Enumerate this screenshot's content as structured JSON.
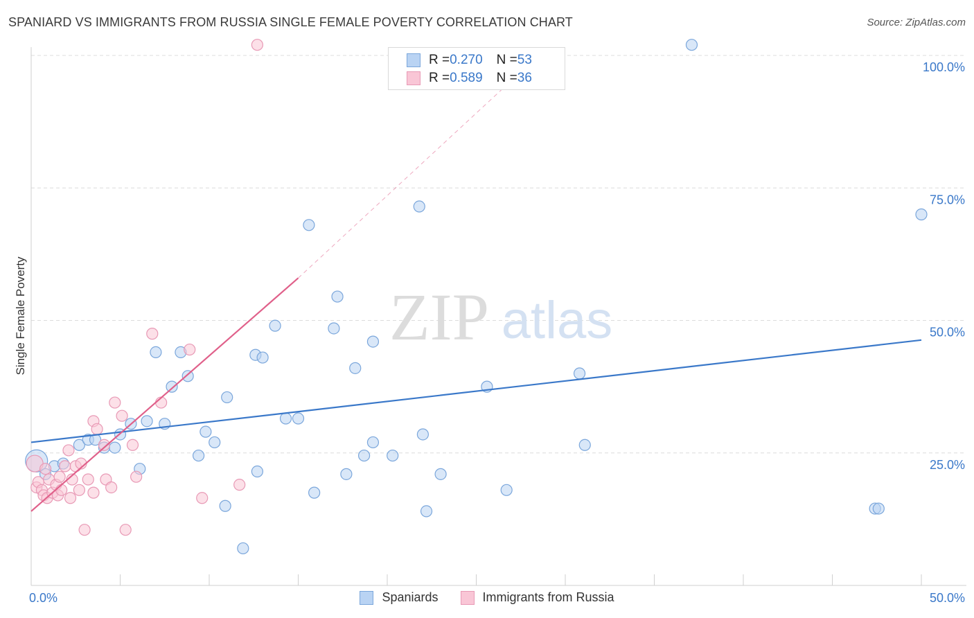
{
  "title": "SPANIARD VS IMMIGRANTS FROM RUSSIA SINGLE FEMALE POVERTY CORRELATION CHART",
  "source": "Source: ZipAtlas.com",
  "watermark": {
    "zip": "ZIP",
    "atlas": "atlas"
  },
  "legend_top": [
    {
      "r_label": "R = ",
      "r_value": "0.270",
      "n_label": "N = ",
      "n_value": "53",
      "fill": "#b9d3f3",
      "stroke": "#7aa6db"
    },
    {
      "r_label": "R = ",
      "r_value": "0.589",
      "n_label": "N = ",
      "n_value": "36",
      "fill": "#f9c6d6",
      "stroke": "#e899b5"
    }
  ],
  "legend_bottom": [
    {
      "label": "Spaniards",
      "fill": "#b9d3f3",
      "stroke": "#7aa6db"
    },
    {
      "label": "Immigrants from Russia",
      "fill": "#f9c6d6",
      "stroke": "#e899b5"
    }
  ],
  "chart_data": {
    "type": "scatter",
    "title": "SPANIARD VS IMMIGRANTS FROM RUSSIA SINGLE FEMALE POVERTY CORRELATION CHART",
    "xlabel": "",
    "ylabel": "Single Female Poverty",
    "xlim": [
      0,
      50
    ],
    "ylim": [
      0,
      102
    ],
    "x_tick_labels": [
      {
        "value": 0,
        "label": "0.0%"
      },
      {
        "value": 50,
        "label": "50.0%"
      }
    ],
    "y_tick_labels": [
      {
        "value": 25,
        "label": "25.0%"
      },
      {
        "value": 50,
        "label": "50.0%"
      },
      {
        "value": 75,
        "label": "75.0%"
      },
      {
        "value": 100,
        "label": "100.0%"
      }
    ],
    "gridlines_y": [
      25,
      50,
      75,
      100
    ],
    "series": [
      {
        "name": "Spaniards",
        "color": "#3a78c9",
        "fill": "#b9d3f3",
        "stroke": "#7aa6db",
        "trend": {
          "x": [
            0,
            50
          ],
          "y": [
            27.0,
            46.3
          ]
        },
        "points": [
          [
            0.3,
            23.5,
            3
          ],
          [
            0.8,
            21.0,
            1
          ],
          [
            1.3,
            22.5,
            1
          ],
          [
            1.8,
            23.0,
            1
          ],
          [
            2.7,
            26.5,
            1
          ],
          [
            3.2,
            27.5,
            1
          ],
          [
            3.6,
            27.5,
            1
          ],
          [
            4.1,
            26.0,
            1
          ],
          [
            4.7,
            26.0,
            1
          ],
          [
            5.0,
            28.5,
            1
          ],
          [
            5.6,
            30.5,
            1
          ],
          [
            6.1,
            22.0,
            1
          ],
          [
            6.5,
            31.0,
            1
          ],
          [
            7.0,
            44.0,
            1
          ],
          [
            7.5,
            30.5,
            1
          ],
          [
            7.9,
            37.5,
            1
          ],
          [
            8.4,
            44.0,
            1
          ],
          [
            8.8,
            39.5,
            1
          ],
          [
            9.4,
            24.5,
            1
          ],
          [
            9.8,
            29.0,
            1
          ],
          [
            10.3,
            27.0,
            1
          ],
          [
            10.9,
            15.0,
            1
          ],
          [
            11.0,
            35.5,
            1
          ],
          [
            11.9,
            7.0,
            1
          ],
          [
            12.6,
            43.5,
            1
          ],
          [
            12.7,
            21.5,
            1
          ],
          [
            13.0,
            43.0,
            1
          ],
          [
            13.7,
            49.0,
            1
          ],
          [
            14.3,
            31.5,
            1
          ],
          [
            15.0,
            31.5,
            1
          ],
          [
            15.6,
            68.0,
            1
          ],
          [
            15.9,
            17.5,
            1
          ],
          [
            17.0,
            48.5,
            1
          ],
          [
            17.2,
            54.5,
            1
          ],
          [
            17.7,
            21.0,
            1
          ],
          [
            18.2,
            41.0,
            1
          ],
          [
            18.7,
            24.5,
            1
          ],
          [
            19.2,
            27.0,
            1
          ],
          [
            19.2,
            46.0,
            1
          ],
          [
            20.3,
            24.5,
            1
          ],
          [
            21.8,
            71.5,
            1
          ],
          [
            22.0,
            28.5,
            1
          ],
          [
            22.2,
            14.0,
            1
          ],
          [
            23.0,
            21.0,
            1
          ],
          [
            25.6,
            37.5,
            1
          ],
          [
            26.7,
            18.0,
            1
          ],
          [
            30.8,
            40.0,
            1
          ],
          [
            31.1,
            26.5,
            1
          ],
          [
            37.1,
            102.0,
            1
          ],
          [
            47.4,
            14.5,
            1
          ],
          [
            47.6,
            14.5,
            1
          ],
          [
            50.0,
            70.0,
            1
          ]
        ]
      },
      {
        "name": "Immigrants from Russia",
        "color": "#e0608a",
        "fill": "#f9c6d6",
        "stroke": "#e899b5",
        "trend": {
          "x": [
            0,
            15
          ],
          "y": [
            14.0,
            58.0
          ],
          "dashed_to": {
            "x": 28.5,
            "y": 100
          }
        },
        "points": [
          [
            0.2,
            23.0,
            2
          ],
          [
            0.3,
            18.5,
            1
          ],
          [
            0.4,
            19.5,
            1
          ],
          [
            0.6,
            18.0,
            1
          ],
          [
            0.7,
            17.0,
            1
          ],
          [
            0.8,
            22.0,
            1
          ],
          [
            0.9,
            16.5,
            1
          ],
          [
            1.0,
            20.0,
            1
          ],
          [
            1.2,
            17.5,
            1
          ],
          [
            1.4,
            19.0,
            1
          ],
          [
            1.5,
            17.0,
            1
          ],
          [
            1.6,
            20.5,
            1
          ],
          [
            1.7,
            18.0,
            1
          ],
          [
            1.9,
            22.5,
            1
          ],
          [
            2.1,
            25.5,
            1
          ],
          [
            2.2,
            16.5,
            1
          ],
          [
            2.3,
            20.0,
            1
          ],
          [
            2.5,
            22.5,
            1
          ],
          [
            2.7,
            18.0,
            1
          ],
          [
            2.8,
            23.0,
            1
          ],
          [
            3.0,
            10.5,
            1
          ],
          [
            3.2,
            20.0,
            1
          ],
          [
            3.5,
            31.0,
            1
          ],
          [
            3.5,
            17.5,
            1
          ],
          [
            3.7,
            29.5,
            1
          ],
          [
            4.1,
            26.5,
            1
          ],
          [
            4.2,
            20.0,
            1
          ],
          [
            4.5,
            18.5,
            1
          ],
          [
            4.7,
            34.5,
            1
          ],
          [
            5.1,
            32.0,
            1
          ],
          [
            5.3,
            10.5,
            1
          ],
          [
            5.7,
            26.5,
            1
          ],
          [
            5.9,
            20.5,
            1
          ],
          [
            6.8,
            47.5,
            1
          ],
          [
            7.3,
            34.5,
            1
          ],
          [
            8.9,
            44.5,
            1
          ],
          [
            9.6,
            16.5,
            1
          ],
          [
            11.7,
            19.0,
            1
          ],
          [
            12.7,
            102.0,
            1
          ]
        ]
      }
    ]
  }
}
